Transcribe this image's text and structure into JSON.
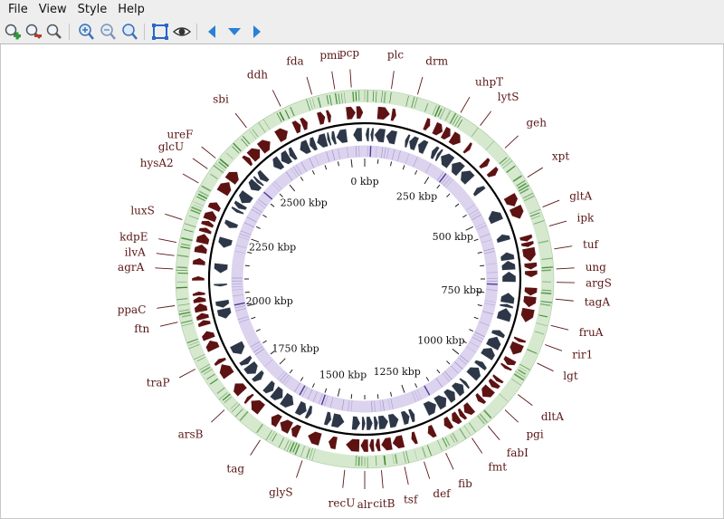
{
  "menu": [
    "File",
    "View",
    "Style",
    "Help"
  ],
  "toolbar": {
    "buttons": [
      {
        "name": "zoom-in-magnifier-icon",
        "color": "#2e9a3a"
      },
      {
        "name": "zoom-out-magnifier-icon",
        "color": "#c0392b"
      },
      {
        "name": "zoom-reset-magnifier-icon",
        "color": "#4a7fc1"
      },
      {
        "name": "zoom-in-icon",
        "color": "#3a6fb5"
      },
      {
        "name": "zoom-out-icon",
        "color": "#7a94b5"
      },
      {
        "name": "zoom-fit-icon",
        "color": "#3a6fb5"
      },
      {
        "name": "fit-to-window-icon",
        "color": "#2a66c9"
      },
      {
        "name": "eye-icon",
        "color": "#333333"
      },
      {
        "name": "arrow-left-icon",
        "color": "#2a80d6"
      },
      {
        "name": "arrow-down-icon",
        "color": "#2a80d6"
      },
      {
        "name": "arrow-right-icon",
        "color": "#2a80d6"
      }
    ]
  },
  "genome_map": {
    "genome_length_kbp": 2800,
    "colors": {
      "gc_ring_bg": "#d6e9cf",
      "gc_ring_mark": "#2e7d20",
      "forward_features": "#5e1212",
      "reverse_features": "#2d3747",
      "inner_ring_bg": "#dcd3ef",
      "inner_ring_mark": "#3b2a8a",
      "label": "#5a1616"
    },
    "scale_ticks": [
      {
        "text": "0 kbp",
        "kbp": 0
      },
      {
        "text": "250 kbp",
        "kbp": 250
      },
      {
        "text": "500 kbp",
        "kbp": 500
      },
      {
        "text": "750 kbp",
        "kbp": 750
      },
      {
        "text": "1000 kbp",
        "kbp": 1000
      },
      {
        "text": "1250 kbp",
        "kbp": 1250
      },
      {
        "text": "1500 kbp",
        "kbp": 1500
      },
      {
        "text": "1750 kbp",
        "kbp": 1750
      },
      {
        "text": "2000 kbp",
        "kbp": 2000
      },
      {
        "text": "2250 kbp",
        "kbp": 2250
      },
      {
        "text": "2500 kbp",
        "kbp": 2500
      }
    ],
    "gene_labels": [
      {
        "text": "pcp",
        "deg": 356
      },
      {
        "text": "plc",
        "deg": 8
      },
      {
        "text": "drm",
        "deg": 16
      },
      {
        "text": "uhpT",
        "deg": 30
      },
      {
        "text": "lytS",
        "deg": 37
      },
      {
        "text": "geh",
        "deg": 47
      },
      {
        "text": "xpt",
        "deg": 58
      },
      {
        "text": "gltA",
        "deg": 68
      },
      {
        "text": "ipk",
        "deg": 74
      },
      {
        "text": "tuf",
        "deg": 81
      },
      {
        "text": "ung",
        "deg": 87
      },
      {
        "text": "argS",
        "deg": 91
      },
      {
        "text": "tagA",
        "deg": 96
      },
      {
        "text": "fruA",
        "deg": 104
      },
      {
        "text": "rir1",
        "deg": 110
      },
      {
        "text": "lgt",
        "deg": 116
      },
      {
        "text": "dltA",
        "deg": 127
      },
      {
        "text": "pgi",
        "deg": 133
      },
      {
        "text": "fabI",
        "deg": 140
      },
      {
        "text": "fmt",
        "deg": 146
      },
      {
        "text": "fib",
        "deg": 155
      },
      {
        "text": "def",
        "deg": 162
      },
      {
        "text": "tsf",
        "deg": 168
      },
      {
        "text": "citB",
        "deg": 175
      },
      {
        "text": "alr",
        "deg": 180
      },
      {
        "text": "recU",
        "deg": 186
      },
      {
        "text": "glyS",
        "deg": 199
      },
      {
        "text": "tag",
        "deg": 213
      },
      {
        "text": "arsB",
        "deg": 227
      },
      {
        "text": "traP",
        "deg": 242
      },
      {
        "text": "ftn",
        "deg": 257
      },
      {
        "text": "ppaC",
        "deg": 262
      },
      {
        "text": "agrA",
        "deg": 273
      },
      {
        "text": "ilvA",
        "deg": 277
      },
      {
        "text": "kdpE",
        "deg": 281
      },
      {
        "text": "luxS",
        "deg": 288
      },
      {
        "text": "hysA2",
        "deg": 300
      },
      {
        "text": "glcU",
        "deg": 305
      },
      {
        "text": "ureF",
        "deg": 309
      },
      {
        "text": "sbi",
        "deg": 322
      },
      {
        "text": "ddh",
        "deg": 334
      },
      {
        "text": "fda",
        "deg": 344
      },
      {
        "text": "pmi",
        "deg": 351
      }
    ]
  }
}
